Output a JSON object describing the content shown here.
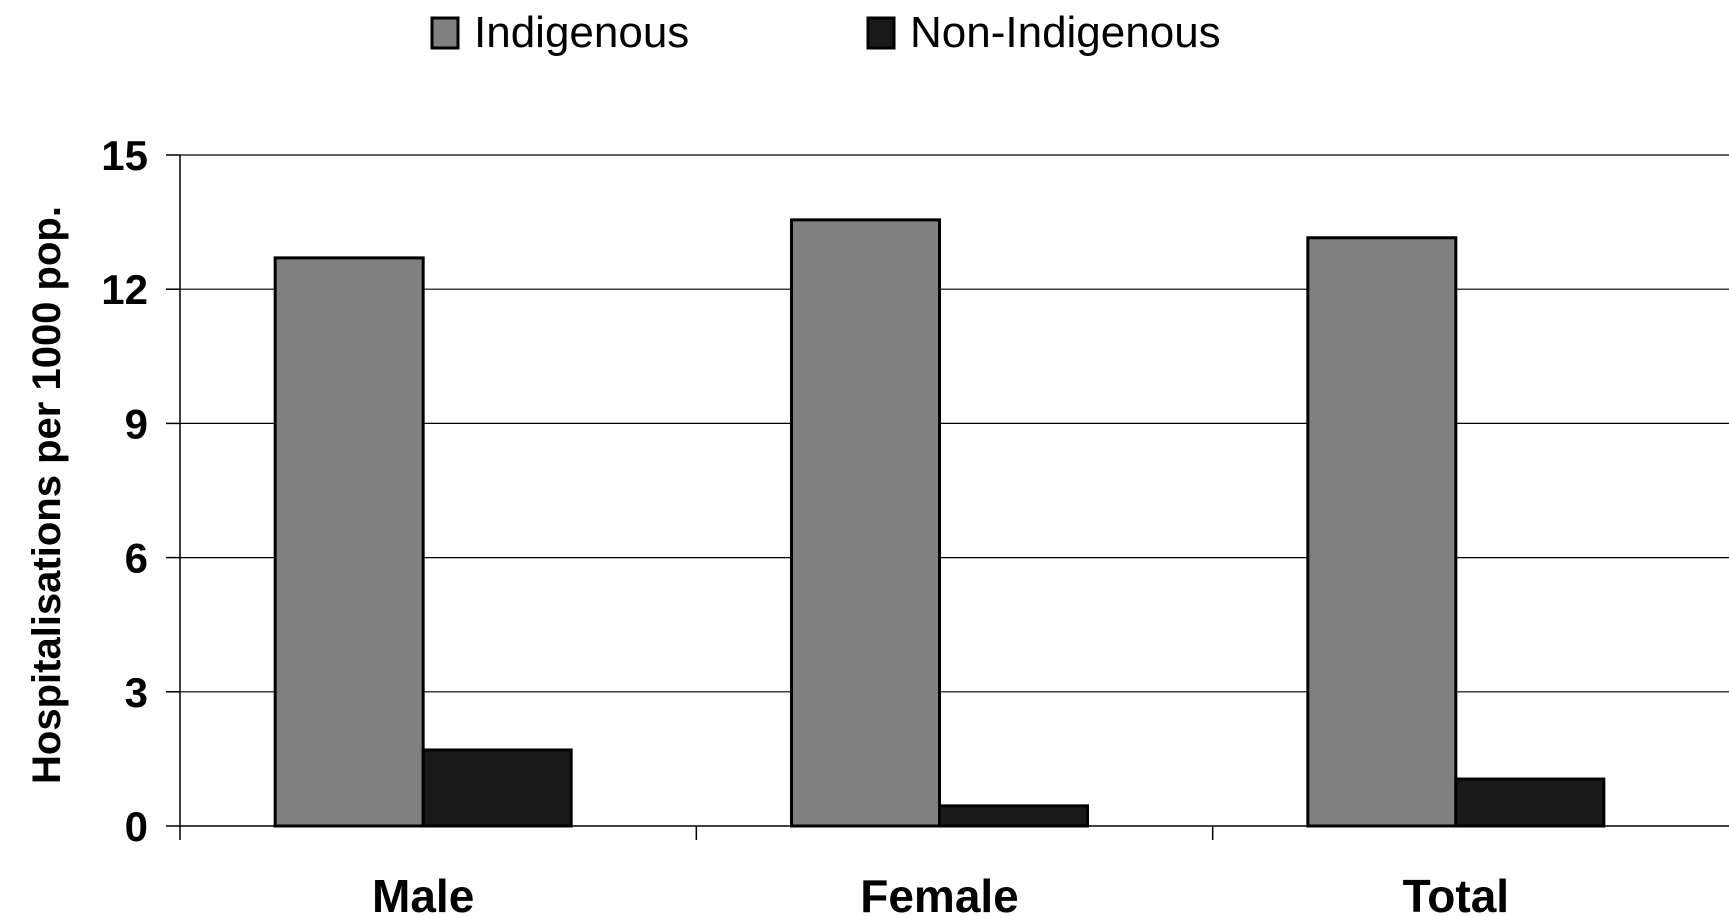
{
  "chart_data": {
    "type": "bar",
    "categories": [
      "Male",
      "Female",
      "Total"
    ],
    "series": [
      {
        "name": "Indigenous",
        "values": [
          12.7,
          13.55,
          13.15
        ],
        "color": "#808080"
      },
      {
        "name": "Non-Indigenous",
        "values": [
          1.7,
          0.45,
          1.05
        ],
        "color": "#1a1a1a"
      }
    ],
    "ylabel": "Hospitalisations per 1000 pop.",
    "xlabel": "",
    "ylim": [
      0,
      15
    ],
    "yticks": [
      "0",
      "3",
      "6",
      "9",
      "12",
      "15"
    ],
    "grid": "horizontal",
    "legend_position": "top"
  }
}
